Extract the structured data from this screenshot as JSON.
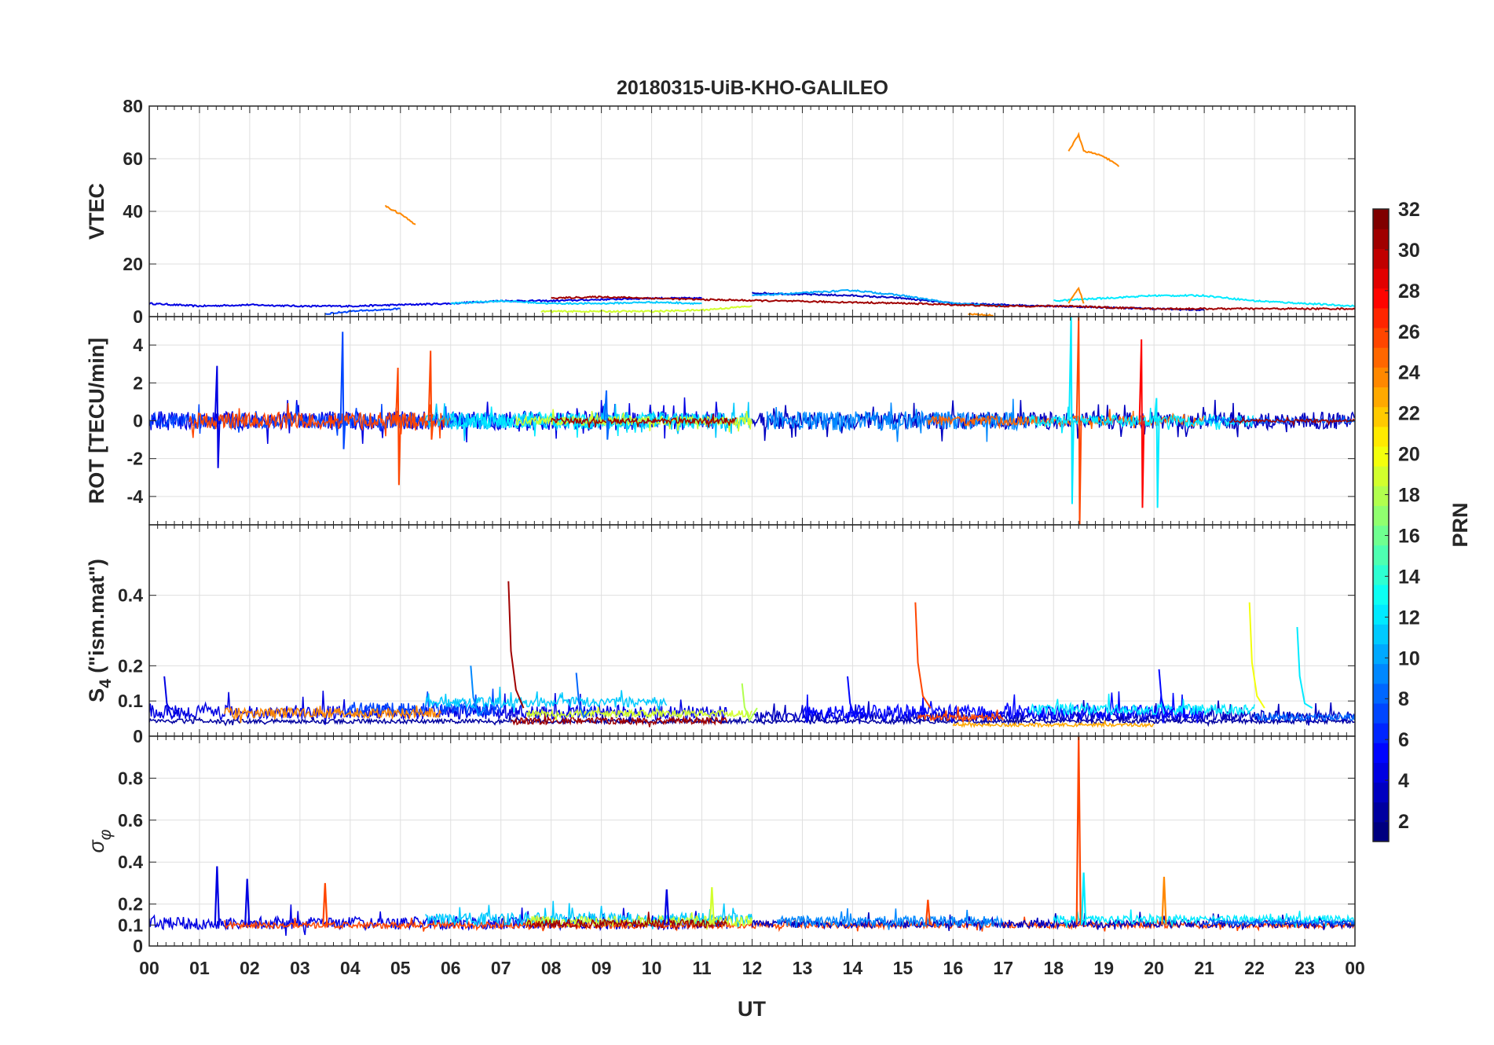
{
  "chart_data": {
    "type": "line",
    "title": "20180315-UiB-KHO-GALILEO",
    "xlabel": "UT",
    "x_tick_labels": [
      "00",
      "01",
      "02",
      "03",
      "04",
      "05",
      "06",
      "07",
      "08",
      "09",
      "10",
      "11",
      "12",
      "13",
      "14",
      "15",
      "16",
      "17",
      "18",
      "19",
      "20",
      "21",
      "22",
      "23",
      "00"
    ],
    "xlim": [
      0,
      24
    ],
    "grid": true,
    "colorbar": {
      "label": "PRN",
      "colormap": "jet",
      "range": [
        1,
        32
      ],
      "levels": 32,
      "tick_labels": [
        "2",
        "4",
        "6",
        "8",
        "10",
        "12",
        "14",
        "16",
        "18",
        "20",
        "22",
        "24",
        "26",
        "28",
        "30",
        "32"
      ],
      "tick_values": [
        2,
        4,
        6,
        8,
        10,
        12,
        14,
        16,
        18,
        20,
        22,
        24,
        26,
        28,
        30,
        32
      ]
    },
    "panels": [
      {
        "id": "vtec",
        "ylabel": "VTEC",
        "ylim": [
          0,
          80
        ],
        "y_tick_values": [
          0,
          20,
          40,
          60,
          80
        ],
        "y_tick_labels": [
          "0",
          "20",
          "40",
          "60",
          "80"
        ],
        "series": [
          {
            "prn": 4,
            "points": [
              [
                0,
                5
              ],
              [
                1,
                4
              ],
              [
                2,
                4.5
              ],
              [
                3,
                4
              ],
              [
                4,
                4
              ],
              [
                5,
                4.5
              ],
              [
                6,
                5
              ],
              [
                7,
                6
              ],
              [
                8,
                6
              ],
              [
                9,
                6.5
              ],
              [
                10,
                7
              ],
              [
                11,
                7
              ]
            ]
          },
          {
            "prn": 3,
            "points": [
              [
                12,
                9
              ],
              [
                13,
                8.5
              ],
              [
                14,
                8
              ],
              [
                15,
                7
              ],
              [
                16,
                5
              ],
              [
                17,
                4.5
              ],
              [
                18,
                4
              ],
              [
                19,
                3.5
              ],
              [
                20,
                3
              ],
              [
                21,
                2.5
              ]
            ]
          },
          {
            "prn": 11,
            "points": [
              [
                6,
                5
              ],
              [
                7,
                6
              ],
              [
                8,
                5
              ],
              [
                9,
                5
              ],
              [
                10,
                5.5
              ],
              [
                11,
                5
              ]
            ]
          },
          {
            "prn": 10,
            "points": [
              [
                12,
                8
              ],
              [
                13,
                9
              ],
              [
                14,
                10
              ],
              [
                15,
                8
              ],
              [
                16,
                5
              ],
              [
                17,
                4
              ]
            ]
          },
          {
            "prn": 12,
            "points": [
              [
                18,
                6
              ],
              [
                19,
                7
              ],
              [
                20,
                8
              ],
              [
                21,
                8
              ],
              [
                22,
                6
              ],
              [
                23,
                5
              ],
              [
                24,
                4
              ]
            ]
          },
          {
            "prn": 19,
            "points": [
              [
                7.8,
                2
              ],
              [
                9,
                2
              ],
              [
                10,
                2
              ],
              [
                11,
                2.5
              ],
              [
                12,
                4
              ]
            ]
          },
          {
            "prn": 31,
            "points": [
              [
                8,
                7
              ],
              [
                9,
                7.5
              ],
              [
                10,
                7
              ],
              [
                11,
                6.5
              ],
              [
                15.2,
                5
              ],
              [
                16,
                4.5
              ],
              [
                17,
                4
              ],
              [
                18,
                4
              ],
              [
                18.5,
                4
              ],
              [
                19,
                3.5
              ],
              [
                20,
                3
              ],
              [
                22,
                3
              ],
              [
                23,
                3
              ],
              [
                24,
                3
              ]
            ]
          },
          {
            "prn": 24,
            "points": [
              [
                4.7,
                42
              ],
              [
                5.0,
                39
              ],
              [
                5.3,
                35
              ]
            ]
          },
          {
            "prn": 24,
            "points": [
              [
                18.3,
                63
              ],
              [
                18.5,
                69
              ],
              [
                18.6,
                63
              ],
              [
                19,
                61
              ],
              [
                19.3,
                57
              ]
            ]
          },
          {
            "prn": 24,
            "points": [
              [
                16.3,
                1
              ],
              [
                16.8,
                0.5
              ]
            ]
          },
          {
            "prn": 24,
            "points": [
              [
                18.3,
                5
              ],
              [
                18.5,
                11
              ],
              [
                18.6,
                5
              ]
            ]
          },
          {
            "prn": 7,
            "points": [
              [
                3.5,
                1
              ],
              [
                4,
                2
              ],
              [
                5,
                3
              ]
            ]
          }
        ]
      },
      {
        "id": "rot",
        "ylabel": "ROT [TECU/min]",
        "ylim": [
          -5.5,
          5.5
        ],
        "y_tick_values": [
          -4,
          -2,
          0,
          2,
          4
        ],
        "y_tick_labels": [
          "-4",
          "-2",
          "0",
          "2",
          "4"
        ],
        "spikes": [
          {
            "prn": 4,
            "x": 1.35,
            "low": -2.5,
            "high": 2.9
          },
          {
            "prn": 7,
            "x": 3.85,
            "low": -1.5,
            "high": 4.7
          },
          {
            "prn": 26,
            "x": 4.95,
            "low": -3.4,
            "high": 2.8
          },
          {
            "prn": 26,
            "x": 5.6,
            "low": -1.0,
            "high": 3.7
          },
          {
            "prn": 12,
            "x": 18.35,
            "low": -4.4,
            "high": 5.5
          },
          {
            "prn": 26,
            "x": 18.5,
            "low": -5.5,
            "high": 5.5
          },
          {
            "prn": 28,
            "x": 19.75,
            "low": -4.6,
            "high": 4.3
          },
          {
            "prn": 12,
            "x": 20.05,
            "low": -4.6,
            "high": 1.2
          },
          {
            "prn": 8,
            "x": 9.1,
            "low": -1.0,
            "high": 1.6
          }
        ]
      },
      {
        "id": "s4",
        "ylabel": "S4 (\"ism.mat\")",
        "ylabel_main": "S",
        "ylabel_sub": "4",
        "ylabel_rest": " (\"ism.mat\")",
        "ylim": [
          0,
          0.6
        ],
        "y_tick_values": [
          0,
          0.1,
          0.2,
          0.4
        ],
        "y_tick_labels": [
          "0",
          "0.1",
          "0.2",
          "0.4"
        ],
        "spikes": [
          {
            "prn": 31,
            "x": 7.15,
            "value": 0.44
          },
          {
            "prn": 26,
            "x": 15.25,
            "value": 0.38
          },
          {
            "prn": 20,
            "x": 21.9,
            "value": 0.38
          },
          {
            "prn": 12,
            "x": 22.85,
            "value": 0.31
          },
          {
            "prn": 9,
            "x": 6.4,
            "value": 0.2
          },
          {
            "prn": 5,
            "x": 20.1,
            "value": 0.19
          },
          {
            "prn": 8,
            "x": 8.5,
            "value": 0.18
          },
          {
            "prn": 5,
            "x": 13.9,
            "value": 0.17
          },
          {
            "prn": 4,
            "x": 0.3,
            "value": 0.17
          },
          {
            "prn": 18,
            "x": 11.8,
            "value": 0.15
          }
        ]
      },
      {
        "id": "sigma_phi",
        "ylabel": "σφ",
        "ylabel_main": "σ",
        "ylabel_sub": "φ",
        "ylim": [
          0,
          1
        ],
        "y_tick_values": [
          0,
          0.1,
          0.2,
          0.4,
          0.6,
          0.8
        ],
        "y_tick_labels": [
          "0",
          "0.1",
          "0.2",
          "0.4",
          "0.6",
          "0.8"
        ],
        "spikes": [
          {
            "prn": 4,
            "x": 1.35,
            "value": 0.38
          },
          {
            "prn": 4,
            "x": 1.95,
            "value": 0.32
          },
          {
            "prn": 26,
            "x": 3.5,
            "value": 0.3
          },
          {
            "prn": 26,
            "x": 18.5,
            "value": 1.0
          },
          {
            "prn": 12,
            "x": 18.6,
            "value": 0.35
          },
          {
            "prn": 24,
            "x": 20.2,
            "value": 0.33
          },
          {
            "prn": 19,
            "x": 11.2,
            "value": 0.28
          },
          {
            "prn": 4,
            "x": 10.3,
            "value": 0.27
          },
          {
            "prn": 26,
            "x": 15.5,
            "value": 0.22
          }
        ]
      }
    ]
  }
}
